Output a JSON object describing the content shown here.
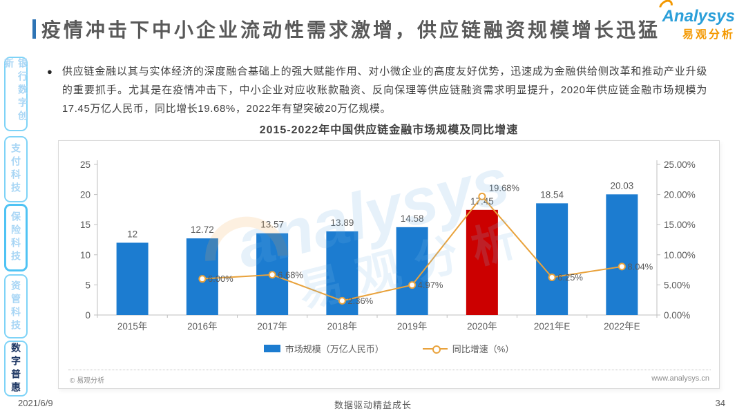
{
  "header": {
    "title": "疫情冲击下中小企业流动性需求激增，供应链融资规模增长迅猛"
  },
  "logo": {
    "name": "Analysys",
    "cn": "易观分析"
  },
  "sidebar": {
    "items": [
      {
        "label": "银行数字创新",
        "active": false,
        "emphasized": false
      },
      {
        "label": "支付科技",
        "active": false,
        "emphasized": false
      },
      {
        "label": "保险科技",
        "active": false,
        "emphasized": true
      },
      {
        "label": "资管科技",
        "active": false,
        "emphasized": false
      },
      {
        "label": "数字普惠",
        "active": true,
        "emphasized": false
      }
    ]
  },
  "content": {
    "bullet_marker": "●",
    "bullet": "供应链金融以其与实体经济的深度融合基础上的强大赋能作用、对小微企业的高度友好优势，迅速成为金融供给侧改革和推动产业升级的重要抓手。尤其是在疫情冲击下，中小企业对应收账款融资、反向保理等供应链融资需求明显提升，2020年供应链金融市场规模为17.45万亿人民币，同比增长19.68%，2022年有望突破20万亿规模。"
  },
  "chart_data": {
    "type": "bar+line",
    "title": "2015-2022年中国供应链金融市场规模及同比增速",
    "categories": [
      "2015年",
      "2016年",
      "2017年",
      "2018年",
      "2019年",
      "2020年",
      "2021年E",
      "2022年E"
    ],
    "series": [
      {
        "name": "市场规模（万亿人民币）",
        "type": "bar",
        "values": [
          12,
          12.72,
          13.57,
          13.89,
          14.58,
          17.45,
          18.54,
          20.03
        ],
        "value_labels": [
          "12",
          "12.72",
          "13.57",
          "13.89",
          "14.58",
          "17.45",
          "18.54",
          "20.03"
        ],
        "color": "#1c7cd0",
        "highlight_index": 5,
        "highlight_color": "#cc0000"
      },
      {
        "name": "同比增速（%）",
        "type": "line",
        "values": [
          null,
          6.0,
          6.68,
          2.36,
          4.97,
          19.68,
          6.25,
          8.04
        ],
        "labels": [
          null,
          "6.00%",
          "6.68%",
          "2.36%",
          "4.97%",
          "19.68%",
          "6.25%",
          "8.04%"
        ],
        "color": "#e9a23b"
      }
    ],
    "left_axis": {
      "min": 0,
      "max": 25,
      "step": 5,
      "ticks": [
        "0",
        "5",
        "10",
        "15",
        "20",
        "25"
      ]
    },
    "right_axis": {
      "min": 0,
      "max": 25,
      "step": 5,
      "ticks": [
        "0.00%",
        "5.00%",
        "10.00%",
        "15.00%",
        "20.00%",
        "25.00%"
      ]
    },
    "grid": false,
    "legend_position": "bottom"
  },
  "chart_footer": {
    "copyright": "© 易观分析",
    "website": "www.analysys.cn"
  },
  "watermark": {
    "text": "analysys",
    "cn": "易观分析"
  },
  "footer": {
    "date": "2021/6/9",
    "center": "数据驱动精益成长",
    "page_number": "34"
  }
}
